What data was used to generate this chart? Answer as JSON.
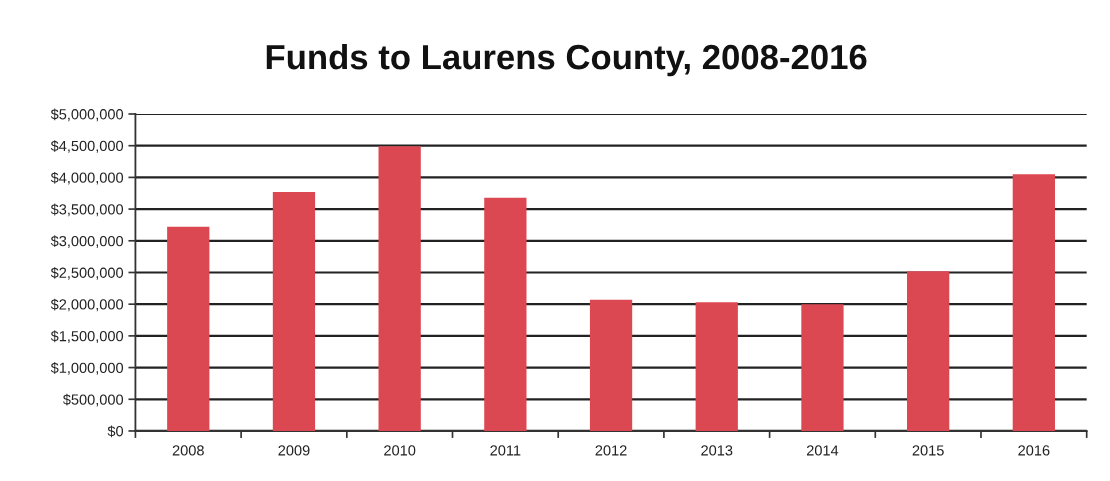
{
  "chart_data": {
    "type": "bar",
    "title": "Funds to Laurens County, 2008-2016",
    "categories": [
      "2008",
      "2009",
      "2010",
      "2011",
      "2012",
      "2013",
      "2014",
      "2015",
      "2016"
    ],
    "values": [
      3220000,
      3770000,
      4490000,
      3680000,
      2070000,
      2030000,
      2000000,
      2520000,
      4050000
    ],
    "color": "#dc4852",
    "ylim": [
      0,
      5000000
    ],
    "yticks": [
      {
        "value": 0,
        "label": "$0"
      },
      {
        "value": 500000,
        "label": "$500,000"
      },
      {
        "value": 1000000,
        "label": "$1,000,000"
      },
      {
        "value": 1500000,
        "label": "$1,500,000"
      },
      {
        "value": 2000000,
        "label": "$2,000,000"
      },
      {
        "value": 2500000,
        "label": "$2,500,000"
      },
      {
        "value": 3000000,
        "label": "$3,000,000"
      },
      {
        "value": 3500000,
        "label": "$3,500,000"
      },
      {
        "value": 4000000,
        "label": "$4,000,000"
      },
      {
        "value": 4500000,
        "label": "$4,500,000"
      },
      {
        "value": 5000000,
        "label": "$5,000,000"
      }
    ],
    "grid": "y",
    "legend": false
  }
}
